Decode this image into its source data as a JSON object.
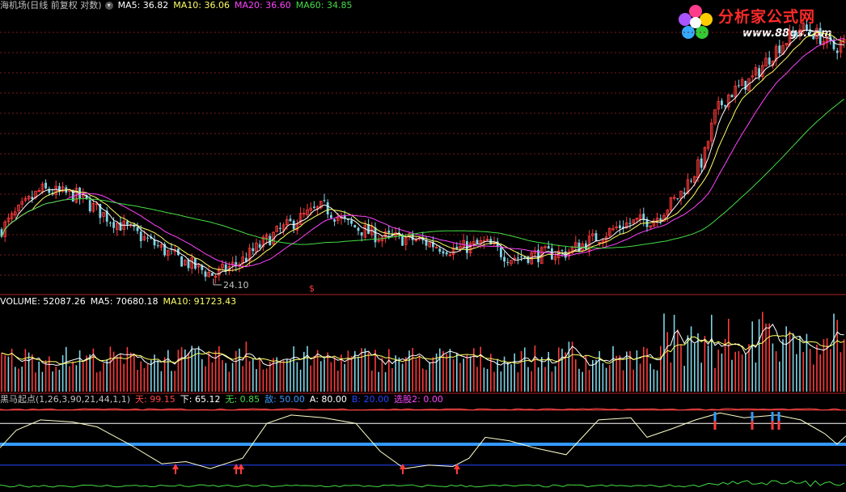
{
  "header": {
    "title": "海机场(日线 前复权 对数)",
    "ma": [
      {
        "label": "MA5: 36.82",
        "color": "#ffffff"
      },
      {
        "label": "MA10: 36.06",
        "color": "#ffff66"
      },
      {
        "label": "MA20: 36.60",
        "color": "#ff44ff"
      },
      {
        "label": "MA60: 34.85",
        "color": "#44dd44"
      }
    ]
  },
  "volume_header": {
    "items": [
      {
        "label": "VOLUME: 52087.26",
        "color": "#ffffff"
      },
      {
        "label": "MA5: 70680.18",
        "color": "#ffffff"
      },
      {
        "label": "MA10: 91723.43",
        "color": "#ffff66"
      }
    ]
  },
  "indicator_header": {
    "items": [
      {
        "label": "黑马起点(1,26,3,90,21,44,1,1)",
        "color": "#c0c0c0"
      },
      {
        "label": "天: 99.15",
        "color": "#ff4444"
      },
      {
        "label": "下: 65.12",
        "color": "#ffffff"
      },
      {
        "label": "无: 0.85",
        "color": "#44dd44"
      },
      {
        "label": "敌: 50.00",
        "color": "#3399ff"
      },
      {
        "label": "A: 80.00",
        "color": "#ffffff"
      },
      {
        "label": "B: 20.00",
        "color": "#2244ff"
      },
      {
        "label": "选股2: 0.00",
        "color": "#ff44ff"
      }
    ]
  },
  "logo": {
    "name": "分析家公式网",
    "url": "www.88gs.com"
  },
  "chart_data": [
    {
      "type": "candlestick",
      "panel": "price",
      "scale": "log",
      "annotation_low": "24.10",
      "marker": "$",
      "series": [
        {
          "name": "MA5",
          "color": "#ffffff"
        },
        {
          "name": "MA10",
          "color": "#ffff66"
        },
        {
          "name": "MA20",
          "color": "#ff44ff"
        },
        {
          "name": "MA60",
          "color": "#44dd44"
        }
      ],
      "grid": true
    },
    {
      "type": "bar",
      "panel": "volume",
      "series": [
        {
          "name": "VOLUME"
        },
        {
          "name": "MA5",
          "color": "#ffffff"
        },
        {
          "name": "MA10",
          "color": "#ffff66"
        }
      ]
    },
    {
      "type": "line",
      "panel": "indicator",
      "reference_lines": [
        {
          "name": "天",
          "value": 99.15,
          "color": "#ff4444"
        },
        {
          "name": "A",
          "value": 80,
          "color": "#ffffff"
        },
        {
          "name": "敌",
          "value": 50,
          "color": "#3399ff"
        },
        {
          "name": "B",
          "value": 20,
          "color": "#2244ff"
        }
      ]
    }
  ]
}
